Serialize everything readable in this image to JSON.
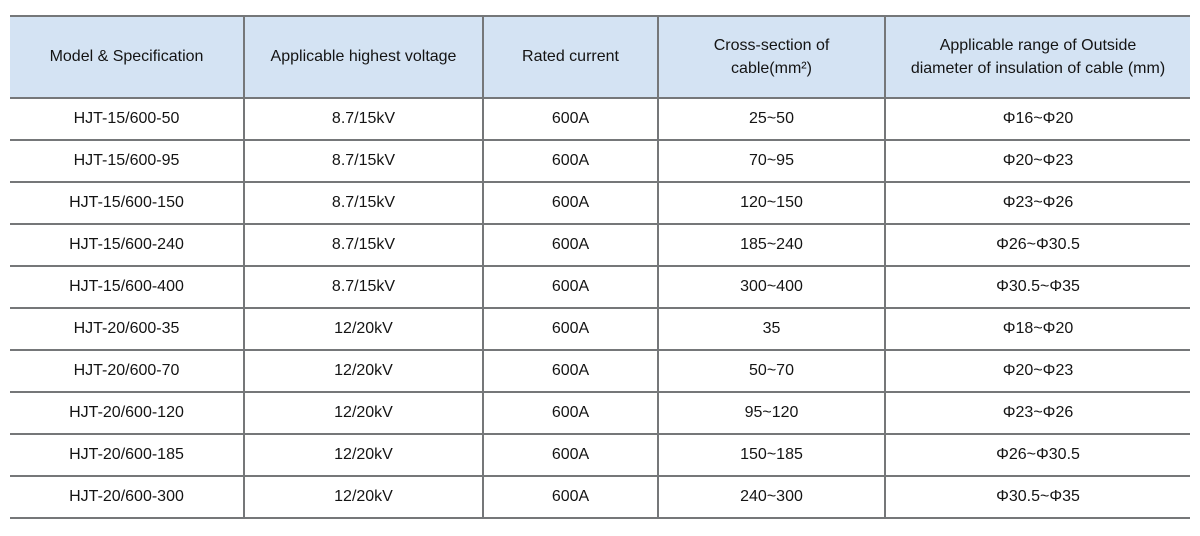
{
  "colors": {
    "page_bg": "#ffffff",
    "header_bg": "#d4e3f3",
    "border": "#757779",
    "text": "#141414"
  },
  "table": {
    "header": {
      "columns": [
        {
          "lines": [
            "Model & Specification"
          ]
        },
        {
          "lines": [
            "Applicable highest voltage"
          ]
        },
        {
          "lines": [
            "Rated current"
          ]
        },
        {
          "lines": [
            "Cross-section of",
            "cable(mm²)"
          ]
        },
        {
          "lines": [
            "Applicable range of Outside",
            "diameter of insulation of cable (mm)"
          ]
        }
      ]
    },
    "rows": [
      {
        "cells": [
          "HJT-15/600-50",
          "8.7/15kV",
          "600A",
          "25~50",
          "Φ16~Φ20"
        ]
      },
      {
        "cells": [
          "HJT-15/600-95",
          "8.7/15kV",
          "600A",
          "70~95",
          "Φ20~Φ23"
        ]
      },
      {
        "cells": [
          "HJT-15/600-150",
          "8.7/15kV",
          "600A",
          "120~150",
          "Φ23~Φ26"
        ]
      },
      {
        "cells": [
          "HJT-15/600-240",
          "8.7/15kV",
          "600A",
          "185~240",
          "Φ26~Φ30.5"
        ]
      },
      {
        "cells": [
          "HJT-15/600-400",
          "8.7/15kV",
          "600A",
          "300~400",
          "Φ30.5~Φ35"
        ]
      },
      {
        "cells": [
          "HJT-20/600-35",
          "12/20kV",
          "600A",
          "35",
          "Φ18~Φ20"
        ]
      },
      {
        "cells": [
          "HJT-20/600-70",
          "12/20kV",
          "600A",
          "50~70",
          "Φ20~Φ23"
        ]
      },
      {
        "cells": [
          "HJT-20/600-120",
          "12/20kV",
          "600A",
          "95~120",
          "Φ23~Φ26"
        ]
      },
      {
        "cells": [
          "HJT-20/600-185",
          "12/20kV",
          "600A",
          "150~185",
          "Φ26~Φ30.5"
        ]
      },
      {
        "cells": [
          "HJT-20/600-300",
          "12/20kV",
          "600A",
          "240~300",
          "Φ30.5~Φ35"
        ]
      }
    ]
  }
}
